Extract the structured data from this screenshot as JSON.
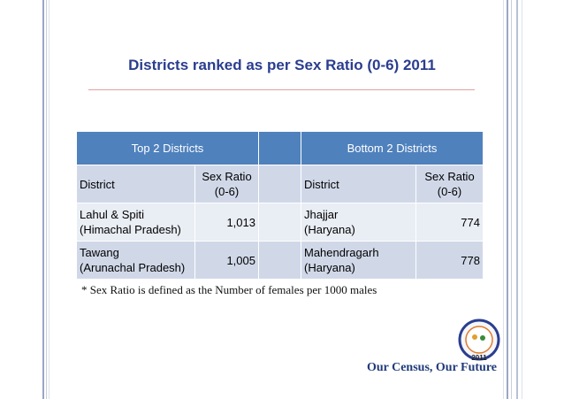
{
  "title": "Districts ranked as per Sex Ratio (0-6) 2011",
  "table": {
    "group_headers": [
      "Top 2 Districts",
      "Bottom 2 Districts"
    ],
    "columns": [
      "District",
      "Sex Ratio\n(0-6)",
      "District",
      "Sex Ratio\n(0-6)"
    ],
    "rows": [
      [
        "Lahul & Spiti\n(Himachal Pradesh)",
        "1,013",
        "Jhajjar\n(Haryana)",
        "774"
      ],
      [
        "Tawang\n(Arunachal Pradesh)",
        "1,005",
        "Mahendragarh\n(Haryana)",
        "778"
      ]
    ]
  },
  "footnote": "* Sex Ratio is defined as the Number of females per 1000 males",
  "tagline": "Our Census, Our Future",
  "logo": {
    "year": "2011"
  }
}
